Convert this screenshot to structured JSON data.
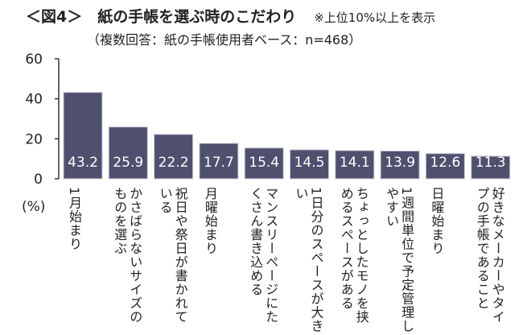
{
  "title": "＜図4＞　紙の手帳を選ぶ時のこだわり",
  "note": "※上位10%以上を表示",
  "subtitle": "（複数回答：紙の手帳使用者ベース：n=468）",
  "chart_data": {
    "type": "bar",
    "ylabel": "(%)",
    "ylim": [
      0,
      60
    ],
    "yticks": [
      0,
      20,
      40,
      60
    ],
    "grid": false,
    "bar_color": "#4f4f6e",
    "categories": [
      "1月始まり",
      "かさばらないサイズのものを選ぶ",
      "祝日や祭日が書かれている",
      "月曜始まり",
      "マンスリーページにたくさん書き込める",
      "1日分のスペースが大きい",
      "ちょっとしたモノを挟めるスペースがある",
      "1週間単位で予定管理しやすい",
      "日曜始まり",
      "好きなメーカーやタイプの手帳であること"
    ],
    "values": [
      43.2,
      25.9,
      22.2,
      17.7,
      15.4,
      14.5,
      14.1,
      13.9,
      12.6,
      11.3
    ],
    "data_labels": [
      "43.2",
      "25.9",
      "22.2",
      "17.7",
      "15.4",
      "14.5",
      "14.1",
      "13.9",
      "12.6",
      "11.3"
    ]
  }
}
